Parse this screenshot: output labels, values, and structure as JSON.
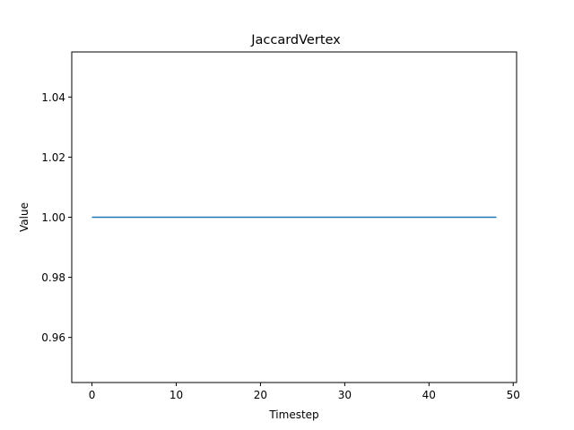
{
  "chart_data": {
    "type": "line",
    "title": "JaccardVertex",
    "xlabel": "Timestep",
    "ylabel": "Value",
    "xlim": [
      -2.4,
      50.4
    ],
    "ylim": [
      0.945,
      1.055
    ],
    "xticks": [
      0,
      10,
      20,
      30,
      40,
      50
    ],
    "yticks": [
      0.96,
      0.98,
      1.0,
      1.02,
      1.04
    ],
    "xtick_labels": [
      "0",
      "10",
      "20",
      "30",
      "40",
      "50"
    ],
    "ytick_labels": [
      "0.96",
      "0.98",
      "1.00",
      "1.02",
      "1.04"
    ],
    "grid": false,
    "legend": "none",
    "series": [
      {
        "color": "#1f77b4",
        "x": [
          0,
          1,
          2,
          3,
          4,
          5,
          6,
          7,
          8,
          9,
          10,
          11,
          12,
          13,
          14,
          15,
          16,
          17,
          18,
          19,
          20,
          21,
          22,
          23,
          24,
          25,
          26,
          27,
          28,
          29,
          30,
          31,
          32,
          33,
          34,
          35,
          36,
          37,
          38,
          39,
          40,
          41,
          42,
          43,
          44,
          45,
          46,
          47,
          48
        ],
        "y": [
          1,
          1,
          1,
          1,
          1,
          1,
          1,
          1,
          1,
          1,
          1,
          1,
          1,
          1,
          1,
          1,
          1,
          1,
          1,
          1,
          1,
          1,
          1,
          1,
          1,
          1,
          1,
          1,
          1,
          1,
          1,
          1,
          1,
          1,
          1,
          1,
          1,
          1,
          1,
          1,
          1,
          1,
          1,
          1,
          1,
          1,
          1,
          1,
          1
        ]
      }
    ]
  }
}
